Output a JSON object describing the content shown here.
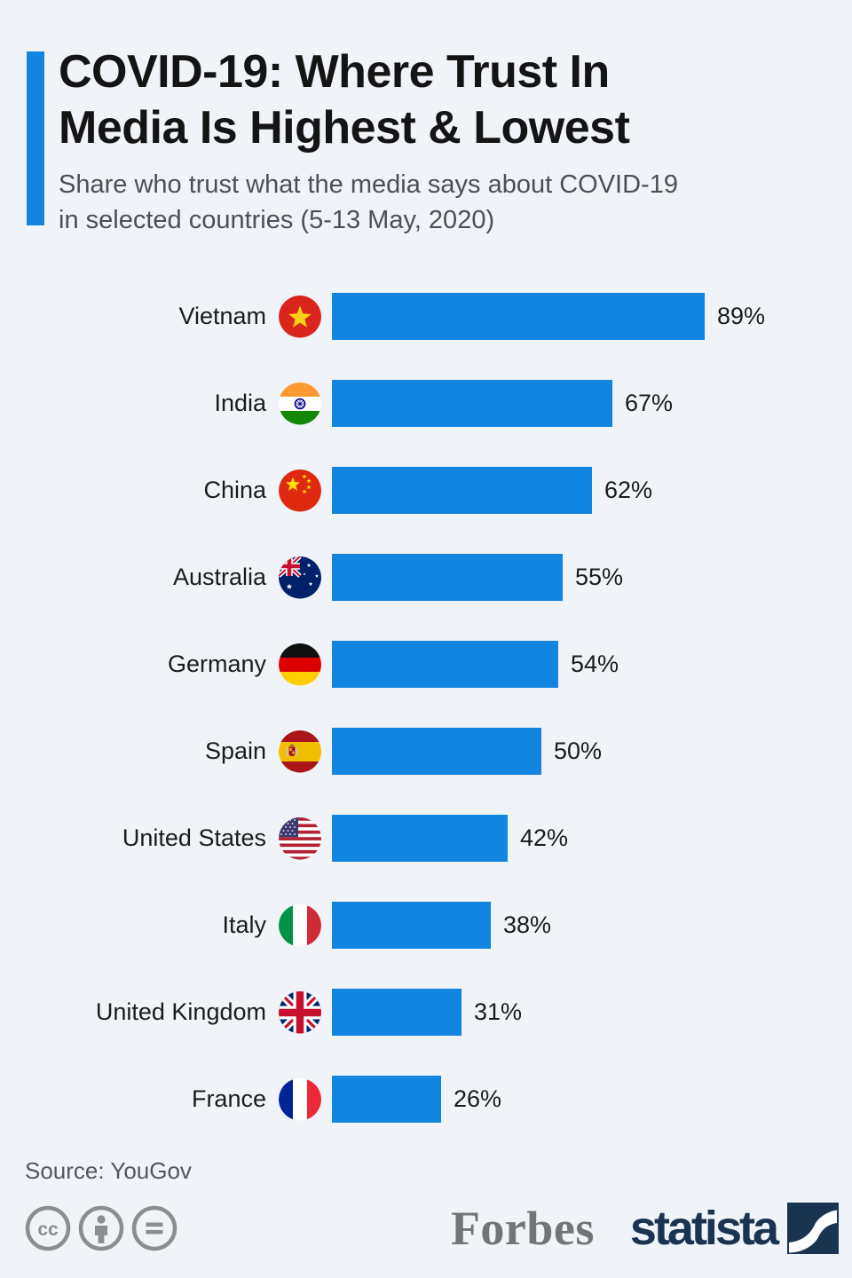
{
  "header": {
    "title_line1": "COVID-19: Where Trust In",
    "title_line2": "Media Is Highest & Lowest",
    "subtitle_line1": "Share who trust what the media says about COVID-19",
    "subtitle_line2": "in selected countries (5-13 May, 2020)"
  },
  "chart_data": {
    "type": "bar",
    "orientation": "horizontal",
    "title": "COVID-19: Where Trust In Media Is Highest & Lowest",
    "subtitle": "Share who trust what the media says about COVID-19 in selected countries (5-13 May, 2020)",
    "unit": "percent",
    "value_suffix": "%",
    "xlim": [
      0,
      100
    ],
    "grid": false,
    "legend": false,
    "categories": [
      "Vietnam",
      "India",
      "China",
      "Australia",
      "Germany",
      "Spain",
      "United States",
      "Italy",
      "United Kingdom",
      "France"
    ],
    "values": [
      89,
      67,
      62,
      55,
      54,
      50,
      42,
      38,
      31,
      26
    ],
    "flags": [
      "vietnam",
      "india",
      "china",
      "australia",
      "germany",
      "spain",
      "united-states",
      "italy",
      "united-kingdom",
      "france"
    ],
    "bar_color": "#1285e0"
  },
  "footer": {
    "source": "Source: YouGov",
    "license_icons": [
      "cc-icon",
      "attribution-icon",
      "no-derivatives-icon"
    ],
    "forbes_logo": "Forbes",
    "statista_logo": "statista"
  },
  "colors": {
    "background": "#f0f4f8",
    "accent": "#1285e0",
    "bar": "#1285e0",
    "statista_navy": "#1a3350",
    "forbes_gray": "#737478"
  }
}
